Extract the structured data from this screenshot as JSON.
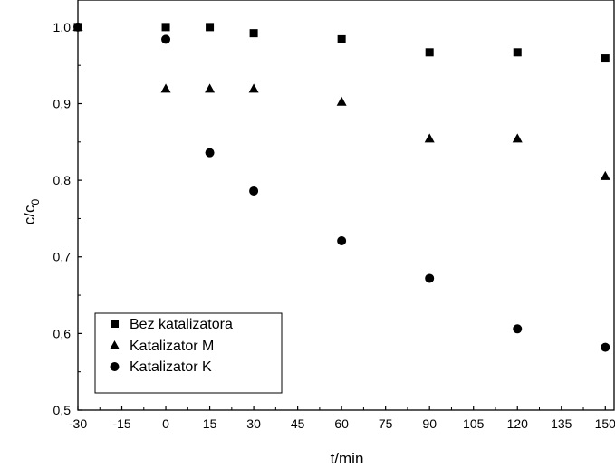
{
  "chart_data": {
    "type": "scatter",
    "xlabel": "t/min",
    "ylabel": "c/c",
    "ylabel_subscript": "0",
    "xlim": [
      -30,
      150
    ],
    "ylim": [
      0.5,
      1.0
    ],
    "x_ticks": [
      -30,
      -15,
      0,
      15,
      30,
      45,
      60,
      75,
      90,
      105,
      120,
      135,
      150
    ],
    "x_tick_labels": [
      "-30",
      "-15",
      "0",
      "15",
      "30",
      "45",
      "60",
      "75",
      "90",
      "105",
      "120",
      "135",
      "150"
    ],
    "y_ticks": [
      0.5,
      0.6,
      0.7,
      0.8,
      0.9,
      1.0
    ],
    "y_tick_labels": [
      "0,5",
      "0,6",
      "0,7",
      "0,8",
      "0,9",
      "1,0"
    ],
    "grid": false,
    "legend_position": "bottom-left",
    "series": [
      {
        "name": "Bez katalizatora",
        "marker": "square",
        "x": [
          -30,
          0,
          15,
          30,
          60,
          90,
          120,
          150
        ],
        "y": [
          1.0,
          1.0,
          1.0,
          0.992,
          0.984,
          0.967,
          0.967,
          0.959
        ]
      },
      {
        "name": "Katalizator M",
        "marker": "triangle",
        "x": [
          -30,
          0,
          15,
          30,
          60,
          90,
          120,
          150
        ],
        "y": [
          1.0,
          0.919,
          0.919,
          0.919,
          0.902,
          0.854,
          0.854,
          0.805
        ]
      },
      {
        "name": "Katalizator K",
        "marker": "circle",
        "x": [
          -30,
          0,
          15,
          30,
          60,
          90,
          120,
          150
        ],
        "y": [
          1.0,
          0.984,
          0.836,
          0.786,
          0.721,
          0.672,
          0.606,
          0.582
        ]
      }
    ]
  }
}
